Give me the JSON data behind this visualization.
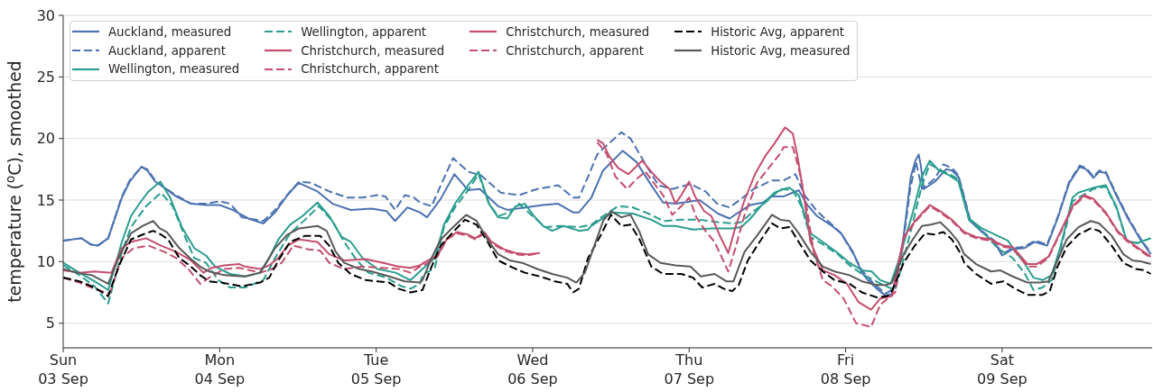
{
  "chart_data": {
    "type": "line",
    "ylabel": "temperature ($^{o}$C), smoothed",
    "xlim": [
      "--09-03T00:00",
      "--09-09T23:00"
    ],
    "xticks": [
      {
        "value": "--09-03",
        "label": "Sun\n03 Sep"
      },
      {
        "value": "--09-04",
        "label": "Mon\n04 Sep"
      },
      {
        "value": "--09-05",
        "label": "Tue\n05 Sep"
      },
      {
        "value": "--09-06",
        "label": "Wed\n06 Sep"
      },
      {
        "value": "--09-07",
        "label": "Thu\n07 Sep"
      },
      {
        "value": "--09-08",
        "label": "Fri\n08 Sep"
      },
      {
        "value": "--09-09",
        "label": "Sat\n09 Sep"
      }
    ],
    "ylim": [
      3,
      30
    ],
    "yticks": [
      5,
      10,
      15,
      20,
      25,
      30
    ],
    "grid": "y",
    "legend": "top left",
    "line_style": "solid",
    "series": [
      {
        "name": "Auckland, measured",
        "color": "#4c72b0",
        "x": [
          "--09-03T00:00",
          "--09-03T02:48",
          "--09-03T04:12",
          "--09-03T05:18",
          "--09-03T06:54",
          "--09-03T09:00",
          "--09-03T10:12",
          "--09-03T12:00",
          "--09-03T12:54",
          "--09-03T14:06",
          "--09-03T15:00",
          "--09-03T17:18",
          "--09-03T19:36",
          "--09-03T21:54",
          "--09-04T00:00",
          "--09-04T02:00",
          "--09-04T04:24",
          "--09-04T06:42",
          "--09-04T08:30",
          "--09-04T10:24",
          "--09-04T12:06",
          "--09-04T15:00",
          "--09-04T17:18",
          "--09-04T20:06",
          "--09-04T23:18",
          "--09-05T01:36",
          "--09-05T02:54",
          "--09-05T04:48",
          "--09-05T06:42",
          "--09-05T07:48",
          "--09-05T09:54",
          "--09-05T12:00",
          "--09-05T14:06",
          "--09-05T15:54",
          "--09-05T18:42",
          "--09-05T20:06",
          "--09-05T22:48",
          "--09-06T01:36",
          "--09-06T03:54",
          "--09-06T06:12",
          "--09-06T07:06",
          "--09-06T09:00",
          "--09-06T10:48",
          "--09-06T13:48",
          "--09-06T15:54",
          "--09-06T18:12",
          "--09-06T20:00",
          "--09-06T21:54",
          "--09-07T01:36",
          "--09-07T04:24",
          "--09-07T06:12",
          "--09-07T07:36",
          "--09-07T09:24",
          "--09-07T11:18",
          "--09-07T12:42",
          "--09-07T14:30",
          "--09-07T15:54",
          "--09-07T16:48",
          "--09-07T18:00",
          "--09-07T19:36",
          "--09-07T21:54",
          "--09-07T23:18",
          "--09-08T01:06",
          "--09-08T02:30",
          "--09-08T03:24",
          "--09-08T04:48",
          "--09-08T06:12",
          "--09-08T07:06",
          "--09-08T08:36",
          "--09-08T10:00",
          "--09-08T10:42",
          "--09-08T11:12",
          "--09-08T11:30",
          "--09-08T12:00",
          "--09-08T13:42",
          "--09-08T15:24",
          "--09-08T16:18",
          "--09-08T17:18",
          "--09-08T19:06",
          "--09-08T20:54",
          "--09-08T22:48",
          "--09-09T00:00",
          "--09-09T01:36",
          "--09-09T03:24",
          "--09-09T05:00",
          "--09-09T06:54",
          "--09-09T08:30",
          "--09-09T10:18",
          "--09-09T11:54",
          "--09-09T12:54",
          "--09-09T14:00",
          "--09-09T14:54",
          "--09-09T15:54",
          "--09-09T17:30",
          "--09-09T19:18",
          "--09-09T21:12",
          "--09-09T22:48"
        ],
        "values": [
          11.7,
          11.9,
          11.4,
          11.3,
          11.9,
          15.2,
          16.5,
          17.7,
          17.4,
          16.5,
          16.2,
          15.3,
          14.7,
          14.6,
          14.6,
          14.2,
          13.5,
          13.1,
          14.0,
          15.4,
          16.4,
          15.7,
          14.7,
          14.2,
          14.3,
          14.1,
          13.3,
          14.4,
          14.0,
          13.6,
          15.1,
          17.1,
          15.8,
          15.9,
          14.5,
          14.2,
          14.4,
          14.6,
          14.7,
          14.0,
          14.0,
          15.2,
          17.4,
          19.0,
          18.1,
          16.2,
          14.8,
          14.7,
          15.0,
          13.9,
          13.5,
          14.0,
          14.6,
          14.8,
          15.3,
          15.3,
          15.6,
          15.8,
          14.7,
          13.7,
          12.9,
          12.3,
          10.8,
          9.1,
          8.5,
          7.8,
          7.2,
          7.4,
          10.8,
          16.9,
          18.2,
          18.7,
          17.9,
          15.9,
          16.5,
          17.5,
          17.4,
          16.9,
          13.3,
          12.4,
          11.6,
          10.5,
          11.0,
          11.1,
          11.6,
          11.3,
          13.5,
          16.4,
          17.7,
          17.5,
          16.8,
          17.3,
          17.2,
          15.4,
          13.5,
          11.8,
          10.6
        ]
      },
      {
        "name": "Auckland, apparent",
        "color": "#4c72b0",
        "line_style": "dashed",
        "x": [
          "--09-03T00:00",
          "--09-03T02:48",
          "--09-03T04:12",
          "--09-03T05:18",
          "--09-03T06:54",
          "--09-03T09:00",
          "--09-03T10:12",
          "--09-03T12:00",
          "--09-03T12:54",
          "--09-03T14:06",
          "--09-03T15:00",
          "--09-03T17:18",
          "--09-03T19:36",
          "--09-03T21:54",
          "--09-04T00:00",
          "--09-04T01:36",
          "--09-04T03:24",
          "--09-04T06:42",
          "--09-04T08:30",
          "--09-04T10:48",
          "--09-04T12:12",
          "--09-04T14:00",
          "--09-04T16:48",
          "--09-04T19:36",
          "--09-04T21:54",
          "--09-05T00:12",
          "--09-05T01:24",
          "--09-05T02:54",
          "--09-05T04:24",
          "--09-05T05:48",
          "--09-05T06:42",
          "--09-05T08:30",
          "--09-05T09:54",
          "--09-05T11:48",
          "--09-05T14:06",
          "--09-05T16:06",
          "--09-05T19:06",
          "--09-05T21:54",
          "--09-06T00:42",
          "--09-06T03:54",
          "--09-06T06:12",
          "--09-06T07:06",
          "--09-06T08:30",
          "--09-06T09:54",
          "--09-06T11:18",
          "--09-06T13:36",
          "--09-06T15:00",
          "--09-06T17:18",
          "--09-06T19:18",
          "--09-06T21:24",
          "--09-07T00:12",
          "--09-07T02:30",
          "--09-07T04:18",
          "--09-07T06:12",
          "--09-07T08:00",
          "--09-07T09:54",
          "--09-07T12:42",
          "--09-07T14:30",
          "--09-07T16:18",
          "--09-07T17:42",
          "--09-07T19:36",
          "--09-07T21:54",
          "--09-07T23:18",
          "--09-08T01:06",
          "--09-08T02:30",
          "--09-08T04:18",
          "--09-08T06:12",
          "--09-08T07:36",
          "--09-08T08:36",
          "--09-08T09:54",
          "--09-08T10:48",
          "--09-08T11:42",
          "--09-08T13:36",
          "--09-08T15:00",
          "--09-08T16:18",
          "--09-08T17:18",
          "--09-08T19:06",
          "--09-08T20:54",
          "--09-08T22:48",
          "--09-09T00:00",
          "--09-09T01:36",
          "--09-09T03:24",
          "--09-09T05:00",
          "--09-09T06:54",
          "--09-09T08:30",
          "--09-09T10:18",
          "--09-09T11:54",
          "--09-09T12:54",
          "--09-09T14:00",
          "--09-09T14:54",
          "--09-09T15:54",
          "--09-09T17:30",
          "--09-09T19:18",
          "--09-09T21:12",
          "--09-09T22:48"
        ],
        "values": [
          11.7,
          11.9,
          11.4,
          11.3,
          11.9,
          15.3,
          16.6,
          17.7,
          17.5,
          16.6,
          16.2,
          15.4,
          14.7,
          14.7,
          14.9,
          14.7,
          13.6,
          13.3,
          14.2,
          15.7,
          16.5,
          16.4,
          15.7,
          15.2,
          15.2,
          15.4,
          15.3,
          14.2,
          15.4,
          15.2,
          14.8,
          14.5,
          16.2,
          18.4,
          17.3,
          17.0,
          15.6,
          15.4,
          15.9,
          16.2,
          15.2,
          15.2,
          16.9,
          18.7,
          19.4,
          20.5,
          20.0,
          17.9,
          16.2,
          15.9,
          16.3,
          15.7,
          14.7,
          14.4,
          15.1,
          15.9,
          16.6,
          16.6,
          17.1,
          15.4,
          14.1,
          13.0,
          12.3,
          10.7,
          9.3,
          8.2,
          7.4,
          7.9,
          10.6,
          15.9,
          18.1,
          15.9,
          16.7,
          17.9,
          17.6,
          17.0,
          13.4,
          12.5,
          11.7,
          10.6,
          11.1,
          11.2,
          11.7,
          11.4,
          13.6,
          16.5,
          17.8,
          17.6,
          16.9,
          17.4,
          17.3,
          15.5,
          13.6,
          11.9,
          10.7
        ]
      },
      {
        "name": "Wellington, measured",
        "color": "#2a9d8f",
        "x": [
          "--09-03T00:00",
          "--09-03T02:30",
          "--09-03T04:48",
          "--09-03T06:54",
          "--09-03T09:00",
          "--09-03T10:24",
          "--09-03T11:48",
          "--09-03T13:06",
          "--09-03T14:54",
          "--09-03T16:24",
          "--09-03T18:12",
          "--09-03T20:06",
          "--09-03T21:54",
          "--09-03T23:18",
          "--09-04T01:36",
          "--09-04T03:54",
          "--09-04T06:12",
          "--09-04T07:36",
          "--09-04T09:00",
          "--09-04T10:48",
          "--09-04T12:42",
          "--09-04T15:00",
          "--09-04T16:48",
          "--09-04T18:42",
          "--09-04T20:06",
          "--09-04T21:54",
          "--09-05T00:12",
          "--09-05T03:00",
          "--09-05T04:48",
          "--09-05T05:18",
          "--09-05T07:06",
          "--09-05T09:00",
          "--09-05T10:24",
          "--09-05T12:12",
          "--09-05T14:06",
          "--09-05T15:42",
          "--09-05T17:18",
          "--09-05T18:42",
          "--09-05T20:06",
          "--09-05T21:24",
          "--09-05T22:48",
          "--09-06T00:12",
          "--09-06T01:36",
          "--09-06T03:00",
          "--09-06T04:48",
          "--09-06T07:06",
          "--09-06T08:30",
          "--09-06T09:00",
          "--09-06T10:24",
          "--09-06T12:12",
          "--09-06T15:24",
          "--09-06T18:12",
          "--09-06T20:00",
          "--09-06T21:54",
          "--09-07T00:36",
          "--09-07T03:24",
          "--09-07T06:36",
          "--09-07T08:00",
          "--09-07T09:24",
          "--09-07T11:18",
          "--09-07T13:06",
          "--09-07T14:30",
          "--09-07T15:24",
          "--09-07T16:48",
          "--09-07T18:36",
          "--09-07T20:30",
          "--09-07T22:48",
          "--09-08T00:36",
          "--09-08T02:30",
          "--09-08T04:00",
          "--09-08T05:18",
          "--09-08T06:54",
          "--09-08T08:00",
          "--09-08T09:12",
          "--09-08T10:18",
          "--09-08T11:42",
          "--09-08T12:54",
          "--09-08T14:18",
          "--09-08T15:54",
          "--09-08T17:18",
          "--09-08T18:54",
          "--09-08T20:54",
          "--09-08T23:18",
          "--09-09T00:54",
          "--09-09T02:00",
          "--09-09T03:24",
          "--09-09T04:48",
          "--09-09T06:12",
          "--09-09T07:36",
          "--09-09T09:00",
          "--09-09T10:48",
          "--09-09T11:42",
          "--09-09T14:00",
          "--09-09T15:54",
          "--09-09T17:30",
          "--09-09T19:06",
          "--09-09T20:42",
          "--09-09T22:48"
        ],
        "values": [
          9.9,
          9.1,
          8.4,
          7.7,
          11.6,
          13.7,
          14.8,
          15.7,
          16.5,
          15.2,
          12.8,
          11.1,
          10.5,
          9.6,
          9.0,
          8.8,
          9.1,
          10.3,
          11.8,
          13.0,
          13.7,
          14.8,
          13.7,
          12.0,
          11.6,
          10.3,
          9.4,
          9.1,
          8.6,
          8.5,
          9.4,
          10.3,
          13.0,
          14.8,
          16.2,
          17.3,
          14.7,
          13.6,
          13.5,
          14.5,
          14.7,
          13.7,
          12.9,
          12.5,
          12.9,
          12.5,
          12.6,
          12.9,
          13.4,
          14.0,
          13.9,
          13.4,
          12.9,
          12.9,
          12.6,
          12.7,
          12.7,
          12.8,
          13.5,
          14.7,
          15.6,
          15.9,
          16.0,
          15.4,
          12.3,
          11.6,
          10.7,
          9.9,
          9.3,
          9.2,
          8.5,
          8.2,
          9.9,
          12.0,
          14.0,
          16.9,
          18.2,
          17.4,
          17.0,
          16.5,
          13.5,
          12.7,
          12.1,
          11.7,
          10.8,
          9.9,
          8.7,
          8.5,
          8.9,
          11.3,
          15.2,
          15.6,
          16.0,
          16.2,
          14.5,
          11.7,
          11.5,
          11.9
        ]
      },
      {
        "name": "Wellington, apparent",
        "color": "#2a9d8f",
        "line_style": "dashed",
        "x": [
          "--09-03T00:00",
          "--09-03T02:30",
          "--09-03T04:48",
          "--09-03T06:54",
          "--09-03T09:00",
          "--09-03T10:24",
          "--09-03T12:42",
          "--09-03T15:00",
          "--09-03T16:48",
          "--09-03T18:42",
          "--09-03T20:06",
          "--09-03T21:54",
          "--09-03T23:48",
          "--09-04T01:36",
          "--09-04T03:54",
          "--09-04T06:42",
          "--09-04T08:30",
          "--09-04T10:48",
          "--09-04T13:06",
          "--09-04T15:12",
          "--09-04T17:18",
          "--09-04T19:06",
          "--09-04T20:54",
          "--09-04T22:48",
          "--09-05T01:36",
          "--09-05T03:54",
          "--09-05T05:18",
          "--09-05T06:42",
          "--09-05T07:06",
          "--09-05T09:00",
          "--09-05T10:24",
          "--09-05T12:12",
          "--09-05T14:06",
          "--09-05T15:42",
          "--09-05T17:18",
          "--09-05T18:42",
          "--09-05T20:30",
          "--09-05T21:54",
          "--09-06T00:12",
          "--09-06T01:54",
          "--09-06T04:12",
          "--09-06T07:06",
          "--09-06T09:00",
          "--09-06T10:48",
          "--09-06T13:06",
          "--09-06T15:24",
          "--09-06T18:12",
          "--09-06T20:00",
          "--09-06T22:48",
          "--09-07T01:36",
          "--09-07T04:24",
          "--09-07T06:36",
          "--09-07T08:00",
          "--09-07T09:54",
          "--09-07T11:42",
          "--09-07T14:00",
          "--09-07T15:54",
          "--09-07T17:12",
          "--09-07T18:36",
          "--09-07T20:30",
          "--09-07T22:48",
          "--09-08T00:36",
          "--09-08T02:30",
          "--09-08T04:18",
          "--09-08T06:12",
          "--09-08T07:36",
          "--09-08T08:36",
          "--09-08T10:00",
          "--09-08T11:42",
          "--09-08T12:54",
          "--09-08T14:18",
          "--09-08T15:54",
          "--09-08T17:18",
          "--09-08T18:54",
          "--09-08T20:54",
          "--09-08T23:18",
          "--09-09T01:36",
          "--09-09T03:24",
          "--09-09T04:48",
          "--09-09T06:12",
          "--09-09T07:36",
          "--09-09T09:00",
          "--09-09T10:48",
          "--09-09T14:00",
          "--09-09T15:54",
          "--09-09T17:30",
          "--09-09T19:06",
          "--09-09T20:42",
          "--09-09T22:48"
        ],
        "values": [
          9.7,
          8.9,
          8.0,
          6.6,
          10.8,
          12.8,
          14.5,
          15.6,
          14.5,
          12.0,
          10.3,
          9.9,
          8.5,
          7.9,
          7.9,
          8.5,
          10.3,
          12.3,
          13.4,
          14.5,
          13.3,
          11.6,
          10.2,
          9.1,
          8.7,
          8.0,
          7.8,
          8.2,
          8.9,
          9.5,
          12.8,
          14.5,
          15.8,
          17.1,
          14.7,
          13.7,
          14.0,
          14.7,
          13.6,
          12.8,
          12.9,
          12.8,
          13.0,
          13.7,
          14.5,
          14.4,
          13.8,
          13.3,
          13.4,
          13.4,
          13.2,
          13.1,
          13.2,
          14.1,
          14.8,
          15.9,
          15.8,
          14.5,
          12.0,
          11.4,
          10.6,
          9.7,
          9.0,
          8.5,
          8.0,
          7.7,
          9.6,
          12.5,
          16.2,
          17.9,
          17.5,
          17.1,
          16.7,
          13.4,
          12.5,
          11.1,
          10.3,
          9.1,
          7.7,
          7.9,
          8.5,
          11.1,
          14.9,
          15.9,
          16.1,
          14.4,
          11.7,
          11.5,
          11.9
        ]
      },
      {
        "name": "Christchurch, measured",
        "color": "#c44e6e",
        "x": [
          "--09-03T00:00",
          "--09-03T02:30",
          "--09-03T04:48",
          "--09-03T07:24",
          "--09-03T09:00",
          "--09-03T10:24",
          "--09-03T12:42",
          "--09-03T15:00",
          "--09-03T17:18",
          "--09-03T19:36",
          "--09-03T21:30",
          "--09-03T22:48",
          "--09-04T00:42",
          "--09-04T03:00",
          "--09-04T03:54",
          "--09-04T06:12",
          "--09-04T07:36",
          "--09-04T09:00",
          "--09-04T10:24",
          "--09-04T12:12",
          "--09-04T15:00",
          "--09-04T16:48",
          "--09-04T19:06",
          "--09-04T22:24",
          "--09-05T01:06",
          "--09-05T03:24",
          "--09-05T05:18",
          "--09-05T06:42",
          "--09-05T07:36",
          "--09-05T09:24",
          "--09-05T10:48",
          "--09-05T12:24",
          "--09-05T14:06",
          "--09-05T15:12",
          "--09-05T16:36",
          "--09-05T17:42",
          "--09-05T19:36",
          "--09-05T21:24",
          "--09-05T23:12",
          "--09-06T01:06"
        ],
        "values": [
          9.3,
          9.1,
          9.2,
          9.1,
          11.1,
          11.6,
          11.9,
          11.3,
          10.8,
          10.1,
          9.1,
          9.5,
          9.7,
          9.8,
          9.6,
          9.4,
          9.7,
          10.3,
          11.3,
          11.8,
          11.6,
          10.6,
          10.1,
          10.2,
          9.9,
          9.6,
          9.5,
          9.7,
          10.0,
          10.5,
          11.8,
          12.4,
          12.2,
          11.9,
          12.4,
          11.6,
          11.0,
          10.7,
          10.6,
          10.7
        ]
      },
      {
        "name": "Christchurch, apparent",
        "color": "#c44e6e",
        "line_style": "dashed",
        "x": [
          "--09-03T00:00",
          "--09-03T02:30",
          "--09-03T04:48",
          "--09-03T07:06",
          "--09-03T09:00",
          "--09-03T10:48",
          "--09-03T13:06",
          "--09-03T15:30",
          "--09-03T17:18",
          "--09-03T19:12",
          "--09-03T21:00",
          "--09-03T22:24",
          "--09-04T00:42",
          "--09-04T03:00",
          "--09-04T06:12",
          "--09-04T08:00",
          "--09-04T09:30",
          "--09-04T11:18",
          "--09-04T13:36",
          "--09-04T15:24",
          "--09-04T16:48",
          "--09-04T19:06",
          "--09-04T21:54",
          "--09-05T00:42",
          "--09-05T03:24",
          "--09-05T05:18",
          "--09-05T06:42",
          "--09-05T07:36",
          "--09-05T09:24",
          "--09-05T10:48",
          "--09-05T12:24",
          "--09-05T14:06",
          "--09-05T15:12",
          "--09-05T16:36",
          "--09-05T17:42",
          "--09-05T19:36",
          "--09-05T21:24",
          "--09-05T23:12",
          "--09-06T01:06"
        ],
        "values": [
          8.7,
          8.3,
          7.8,
          7.4,
          10.3,
          11.1,
          11.3,
          10.8,
          10.3,
          9.4,
          8.2,
          8.7,
          9.4,
          9.5,
          9.1,
          9.4,
          9.9,
          11.3,
          11.0,
          10.9,
          9.9,
          9.4,
          9.6,
          9.5,
          9.4,
          9.1,
          9.6,
          9.8,
          10.4,
          11.8,
          12.3,
          12.1,
          11.8,
          12.3,
          11.5,
          10.9,
          10.6,
          10.5,
          10.7
        ]
      },
      {
        "name": "Christchurch, measured",
        "color": "#c44e6e",
        "x": [
          "--09-06T09:54",
          "--09-06T10:48",
          "--09-06T11:42",
          "--09-06T13:06",
          "--09-06T14:42",
          "--09-06T16:48",
          "--09-06T18:12",
          "--09-06T19:36",
          "--09-06T21:00",
          "--09-06T21:54",
          "--09-06T22:48",
          "--09-07T00:00",
          "--09-07T00:54",
          "--09-07T02:18",
          "--09-07T03:24",
          "--09-07T04:48",
          "--09-07T06:00",
          "--09-07T07:06",
          "--09-07T08:30",
          "--09-07T10:06",
          "--09-07T11:42",
          "--09-07T13:06",
          "--09-07T14:42",
          "--09-07T15:54",
          "--09-07T16:36",
          "--09-07T17:30",
          "--09-07T18:36",
          "--09-07T20:30",
          "--09-07T22:18",
          "--09-08T00:12",
          "--09-08T02:00",
          "--09-08T03:54",
          "--09-08T05:18",
          "--09-08T06:12",
          "--09-08T07:06",
          "--09-08T08:54",
          "--09-08T10:48",
          "--09-08T12:54",
          "--09-08T14:30",
          "--09-08T16:18",
          "--09-08T18:12",
          "--09-08T20:00",
          "--09-08T22:18",
          "--09-09T00:12",
          "--09-09T01:36",
          "--09-09T03:54",
          "--09-09T05:18",
          "--09-09T07:06",
          "--09-09T09:00",
          "--09-09T10:48",
          "--09-09T12:36",
          "--09-09T14:00",
          "--09-09T15:54",
          "--09-09T17:42",
          "--09-09T19:06",
          "--09-09T20:54",
          "--09-09T22:48"
        ],
        "values": [
          19.9,
          19.6,
          18.6,
          17.6,
          17.1,
          18.2,
          17.3,
          16.5,
          15.9,
          14.7,
          15.4,
          16.5,
          15.3,
          14.1,
          13.7,
          12.0,
          10.7,
          12.8,
          15.0,
          17.1,
          18.6,
          19.6,
          20.9,
          20.4,
          18.6,
          15.7,
          11.6,
          9.3,
          8.9,
          8.2,
          6.7,
          6.1,
          7.0,
          7.1,
          7.2,
          12.0,
          13.4,
          14.6,
          14.1,
          13.4,
          12.4,
          12.0,
          11.8,
          11.3,
          11.2,
          9.8,
          9.8,
          10.4,
          12.5,
          14.5,
          15.4,
          15.1,
          14.0,
          12.5,
          11.8,
          11.1,
          10.4
        ]
      },
      {
        "name": "Christchurch, apparent",
        "color": "#c44e6e",
        "line_style": "dashed",
        "x": [
          "--09-06T09:54",
          "--09-06T11:18",
          "--09-06T12:42",
          "--09-06T14:30",
          "--09-06T15:54",
          "--09-06T17:18",
          "--09-06T18:42",
          "--09-06T20:00",
          "--09-06T21:24",
          "--09-06T22:48",
          "--09-07T00:00",
          "--09-07T01:06",
          "--09-07T02:30",
          "--09-07T03:54",
          "--09-07T06:00",
          "--09-07T07:06",
          "--09-07T08:30",
          "--09-07T10:24",
          "--09-07T12:12",
          "--09-07T14:00",
          "--09-07T14:30",
          "--09-07T15:54",
          "--09-07T16:48",
          "--09-07T18:00",
          "--09-07T19:06",
          "--09-07T20:30",
          "--09-07T21:54",
          "--09-07T23:42",
          "--09-08T01:36",
          "--09-08T03:54",
          "--09-08T05:18",
          "--09-08T06:42",
          "--09-08T07:36",
          "--09-08T08:54",
          "--09-08T10:48",
          "--09-08T12:54",
          "--09-08T14:30",
          "--09-08T16:18",
          "--09-08T18:12",
          "--09-08T20:00",
          "--09-08T22:18",
          "--09-09T00:12",
          "--09-09T01:36",
          "--09-09T03:54",
          "--09-09T05:18",
          "--09-09T07:06",
          "--09-09T09:00",
          "--09-09T10:48",
          "--09-09T12:36",
          "--09-09T14:00",
          "--09-09T15:54",
          "--09-09T17:42",
          "--09-09T19:06",
          "--09-09T20:54",
          "--09-09T22:48"
        ],
        "values": [
          19.7,
          18.8,
          16.9,
          15.9,
          16.7,
          17.3,
          16.3,
          15.4,
          13.8,
          14.5,
          15.2,
          13.6,
          12.5,
          11.6,
          9.2,
          11.1,
          13.8,
          16.4,
          17.6,
          18.8,
          19.3,
          19.3,
          17.6,
          14.5,
          10.8,
          8.5,
          8.0,
          7.0,
          5.0,
          4.7,
          6.5,
          7.1,
          7.5,
          11.9,
          13.3,
          14.5,
          14.0,
          13.3,
          12.3,
          11.9,
          11.7,
          11.2,
          11.1,
          9.6,
          9.6,
          10.3,
          12.4,
          14.4,
          15.3,
          15.0,
          13.9,
          12.4,
          11.7,
          11.0,
          10.3
        ]
      },
      {
        "name": "Historic Avg, apparent",
        "color": "#000000",
        "line_style": "dashed",
        "x": [
          "--09-03T00:00",
          "--09-03T02:30",
          "--09-03T04:48",
          "--09-03T06:54",
          "--09-03T08:30",
          "--09-03T10:24",
          "--09-03T12:12",
          "--09-03T13:48",
          "--09-03T15:00",
          "--09-03T16:06",
          "--09-03T17:48",
          "--09-03T19:36",
          "--09-03T21:00",
          "--09-03T22:24",
          "--09-04T00:12",
          "--09-04T03:24",
          "--09-04T06:12",
          "--09-04T07:36",
          "--09-04T09:00",
          "--09-04T10:48",
          "--09-04T13:06",
          "--09-04T15:24",
          "--09-04T16:48",
          "--09-04T18:12",
          "--09-04T20:06",
          "--09-04T22:24",
          "--09-05T00:12",
          "--09-05T02:00",
          "--09-05T03:24",
          "--09-05T05:18",
          "--09-05T07:06",
          "--09-05T08:30",
          "--09-05T09:54",
          "--09-05T11:48",
          "--09-05T13:36",
          "--09-05T15:24",
          "--09-05T17:06",
          "--09-05T18:42",
          "--09-05T21:00",
          "--09-05T22:48",
          "--09-06T01:06",
          "--09-06T03:24",
          "--09-06T05:18",
          "--09-06T06:12",
          "--09-06T07:06",
          "--09-06T08:30",
          "--09-06T10:24",
          "--09-06T12:00",
          "--09-06T13:36",
          "--09-06T15:00",
          "--09-06T16:24",
          "--09-06T18:12",
          "--09-06T20:00",
          "--09-06T22:48",
          "--09-07T00:36",
          "--09-07T02:00",
          "--09-07T03:54",
          "--09-07T05:18",
          "--09-07T06:36",
          "--09-07T07:36",
          "--09-07T09:00",
          "--09-07T10:48",
          "--09-07T12:42",
          "--09-07T14:00",
          "--09-07T15:24",
          "--09-07T16:48",
          "--09-07T18:36",
          "--09-07T20:30",
          "--09-07T22:18",
          "--09-08T00:36",
          "--09-08T02:30",
          "--09-08T04:48",
          "--09-08T06:24",
          "--09-08T07:06",
          "--09-08T08:54",
          "--09-08T10:36",
          "--09-08T12:12",
          "--09-08T13:36",
          "--09-08T15:00",
          "--09-08T16:18",
          "--09-08T17:42",
          "--09-08T18:12",
          "--09-08T20:00",
          "--09-08T22:18",
          "--09-09T00:12",
          "--09-09T02:00",
          "--09-09T03:54",
          "--09-09T06:12",
          "--09-09T07:18",
          "--09-09T08:30",
          "--09-09T09:54",
          "--09-09T11:42",
          "--09-09T13:36",
          "--09-09T14:54",
          "--09-09T16:48",
          "--09-09T18:36",
          "--09-09T20:30",
          "--09-09T21:48",
          "--09-09T22:48"
        ],
        "values": [
          8.7,
          8.4,
          7.9,
          7.2,
          9.6,
          11.8,
          12.2,
          12.5,
          12.2,
          11.8,
          10.3,
          9.6,
          8.9,
          8.4,
          8.3,
          8.0,
          8.3,
          8.7,
          10.1,
          11.6,
          12.1,
          12.1,
          11.3,
          9.9,
          9.0,
          8.5,
          8.4,
          8.3,
          7.8,
          7.5,
          7.7,
          9.6,
          11.3,
          12.4,
          13.4,
          13.0,
          11.6,
          10.1,
          9.5,
          9.1,
          8.8,
          8.4,
          8.2,
          7.5,
          7.8,
          10.3,
          12.1,
          13.8,
          12.9,
          13.0,
          11.8,
          9.6,
          9.0,
          9.0,
          8.7,
          7.9,
          8.2,
          7.8,
          7.6,
          8.1,
          10.1,
          11.6,
          13.1,
          12.7,
          12.8,
          11.6,
          10.1,
          9.2,
          8.5,
          8.2,
          7.5,
          7.1,
          7.2,
          7.6,
          9.9,
          11.3,
          12.3,
          12.2,
          12.4,
          11.8,
          10.6,
          9.9,
          9.0,
          8.2,
          8.4,
          7.8,
          7.3,
          7.3,
          7.6,
          9.6,
          11.2,
          12.2,
          12.7,
          12.5,
          11.3,
          9.9,
          9.4,
          9.3,
          9.0
        ]
      },
      {
        "name": "Historic Avg, measured",
        "color": "#595959",
        "x": [
          "--09-03T00:00",
          "--09-03T02:06",
          "--09-03T04:24",
          "--09-03T06:54",
          "--09-03T08:30",
          "--09-03T10:24",
          "--09-03T12:12",
          "--09-03T13:48",
          "--09-03T14:48",
          "--09-03T15:54",
          "--09-03T17:48",
          "--09-03T19:36",
          "--09-03T21:00",
          "--09-03T22:24",
          "--09-04T00:42",
          "--09-04T03:54",
          "--09-04T06:12",
          "--09-04T08:30",
          "--09-04T10:24",
          "--09-04T12:12",
          "--09-04T15:00",
          "--09-04T16:24",
          "--09-04T17:48",
          "--09-04T19:06",
          "--09-04T21:24",
          "--09-04T23:18",
          "--09-05T02:00",
          "--09-05T04:24",
          "--09-05T06:42",
          "--09-05T07:06",
          "--09-05T08:30",
          "--09-05T09:54",
          "--09-05T11:48",
          "--09-05T13:48",
          "--09-05T15:24",
          "--09-05T17:18",
          "--09-05T18:42",
          "--09-05T20:30",
          "--09-05T22:24",
          "--09-06T00:42",
          "--09-06T03:00",
          "--09-06T05:18",
          "--09-06T06:42",
          "--09-06T08:00",
          "--09-06T09:00",
          "--09-06T10:48",
          "--09-06T12:00",
          "--09-06T13:36",
          "--09-06T15:00",
          "--09-06T16:24",
          "--09-06T17:42",
          "--09-06T19:36",
          "--09-06T21:54",
          "--09-07T00:12",
          "--09-07T01:48",
          "--09-07T03:54",
          "--09-07T05:42",
          "--09-07T06:48",
          "--09-07T08:30",
          "--09-07T10:24",
          "--09-07T12:42",
          "--09-07T14:00",
          "--09-07T15:24",
          "--09-07T16:48",
          "--09-07T18:36",
          "--09-07T20:30",
          "--09-07T22:18",
          "--09-08T00:36",
          "--09-08T02:30",
          "--09-08T04:48",
          "--09-08T06:12",
          "--09-08T07:06",
          "--09-08T08:54",
          "--09-08T10:18",
          "--09-08T11:42",
          "--09-08T13:06",
          "--09-08T14:30",
          "--09-08T15:54",
          "--09-08T17:18",
          "--09-08T18:12",
          "--09-08T20:00",
          "--09-08T22:18",
          "--09-08T23:42",
          "--09-09T01:36",
          "--09-09T03:54",
          "--09-09T05:48",
          "--09-09T07:06",
          "--09-09T08:30",
          "--09-09T09:54",
          "--09-09T11:42",
          "--09-09T13:36",
          "--09-09T14:54",
          "--09-09T16:48",
          "--09-09T18:36",
          "--09-09T20:00",
          "--09-09T21:24",
          "--09-09T22:48"
        ],
        "values": [
          9.4,
          9.1,
          8.9,
          8.2,
          10.3,
          12.3,
          12.9,
          13.3,
          12.7,
          12.4,
          11.1,
          10.2,
          9.6,
          9.2,
          8.9,
          8.8,
          9.1,
          11.1,
          12.2,
          12.7,
          12.9,
          12.5,
          10.8,
          9.9,
          9.4,
          9.2,
          8.8,
          8.4,
          8.3,
          8.5,
          10.3,
          11.8,
          12.8,
          13.8,
          13.3,
          11.6,
          10.6,
          10.1,
          9.9,
          9.4,
          9.0,
          8.7,
          8.3,
          9.1,
          10.6,
          13.3,
          14.1,
          13.6,
          13.8,
          12.4,
          10.6,
          9.9,
          9.7,
          9.6,
          8.8,
          9.0,
          8.4,
          8.4,
          10.8,
          12.1,
          13.8,
          13.4,
          13.3,
          12.3,
          10.8,
          9.6,
          9.2,
          8.9,
          8.4,
          8.1,
          8.1,
          8.3,
          10.6,
          11.8,
          12.9,
          13.0,
          13.2,
          12.5,
          11.6,
          10.6,
          9.8,
          9.2,
          9.3,
          8.8,
          8.3,
          8.3,
          8.4,
          10.1,
          11.8,
          12.8,
          13.3,
          13.1,
          12.1,
          10.6,
          10.1,
          10.0,
          9.8
        ]
      }
    ]
  }
}
